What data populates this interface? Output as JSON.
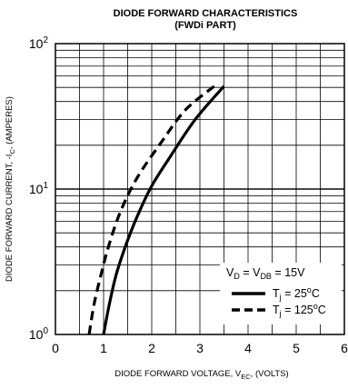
{
  "chart_data": {
    "type": "line",
    "title": "DIODE FORWARD CHARACTERISTICS",
    "subtitle": "(FWDi PART)",
    "xlabel": {
      "main": "DIODE FORWARD VOLTAGE, V",
      "sub": "EC",
      "tail": ", (VOLTS)"
    },
    "ylabel": {
      "main": "DIODE FORWARD CURRENT, -I",
      "sub": "C",
      "tail": ", (AMPERES)"
    },
    "xlim": [
      0,
      6
    ],
    "ylim": [
      1,
      100
    ],
    "yscale": "log",
    "grid": true,
    "x_ticks": [
      "0",
      "1",
      "2",
      "3",
      "4",
      "5",
      "6"
    ],
    "y_ticks": [
      {
        "value": 1,
        "base": "10",
        "exp": "0"
      },
      {
        "value": 10,
        "base": "10",
        "exp": "1"
      },
      {
        "value": 100,
        "base": "10",
        "exp": "2"
      }
    ],
    "legend": {
      "placement": "bottom-right",
      "condition": {
        "a": "V",
        "a_sub": "D",
        "eq": " = V",
        "b_sub": "DB",
        "value": " = 15V"
      },
      "entries": [
        {
          "prefix": "T",
          "sub": "j",
          "text": " = 25",
          "sup": "o",
          "unit": "C",
          "style": "solid"
        },
        {
          "prefix": "T",
          "sub": "j",
          "text": " = 125",
          "sup": "o",
          "unit": "C",
          "style": "dashed"
        }
      ]
    },
    "series": [
      {
        "style": "solid",
        "color": "#000000",
        "points": [
          [
            1.0,
            1.0
          ],
          [
            1.1,
            1.5
          ],
          [
            1.25,
            2.5
          ],
          [
            1.45,
            4.0
          ],
          [
            1.7,
            6.5
          ],
          [
            2.0,
            10.5
          ],
          [
            2.4,
            17
          ],
          [
            2.9,
            30
          ],
          [
            3.5,
            51
          ]
        ]
      },
      {
        "style": "dashed",
        "color": "#000000",
        "points": [
          [
            0.7,
            1.0
          ],
          [
            0.8,
            1.6
          ],
          [
            0.95,
            2.6
          ],
          [
            1.1,
            4.0
          ],
          [
            1.35,
            7.0
          ],
          [
            1.7,
            12
          ],
          [
            2.2,
            21
          ],
          [
            2.7,
            35
          ],
          [
            3.3,
            51
          ]
        ]
      }
    ]
  }
}
